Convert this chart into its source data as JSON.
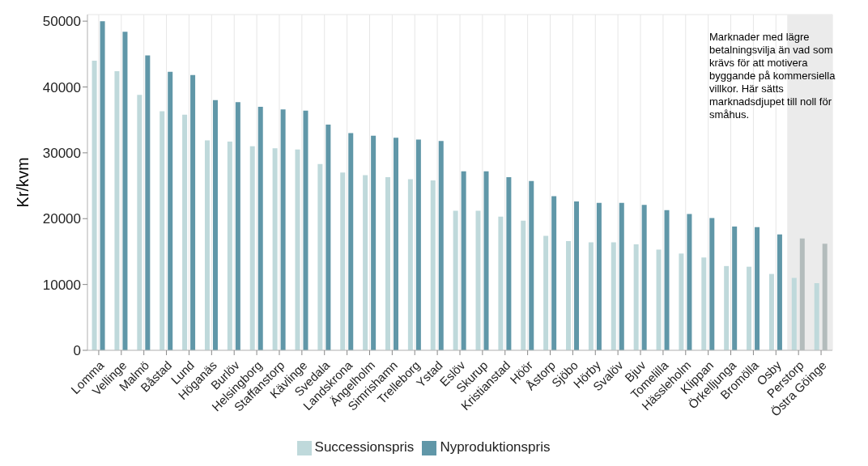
{
  "chart_data": {
    "type": "bar",
    "ylabel": "Kr/kvm",
    "categories": [
      "Lomma",
      "Vellinge",
      "Malmö",
      "Båstad",
      "Lund",
      "Höganäs",
      "Burlöv",
      "Helsingborg",
      "Staffanstorp",
      "Kävlinge",
      "Svedala",
      "Landskrona",
      "Ängelholm",
      "Simrishamn",
      "Trelleborg",
      "Ystad",
      "Eslöv",
      "Skurup",
      "Kristianstad",
      "Höör",
      "Åstorp",
      "Sjöbo",
      "Hörby",
      "Svalöv",
      "Bjuv",
      "Tomelilla",
      "Hässleholm",
      "Klippan",
      "Örkelljunga",
      "Bromölla",
      "Osby",
      "Perstorp",
      "Östra Göinge"
    ],
    "series": [
      {
        "name": "Successionspris",
        "color": "#bfd9db",
        "values": [
          44000,
          42400,
          38800,
          36300,
          35800,
          31900,
          31700,
          31000,
          30700,
          30500,
          28300,
          27000,
          26600,
          26300,
          26000,
          25800,
          21200,
          21200,
          20300,
          19700,
          17400,
          16600,
          16400,
          16400,
          16100,
          15300,
          14700,
          14100,
          12800,
          12700,
          11600,
          11000,
          10200
        ]
      },
      {
        "name": "Nyproduktionspris",
        "color": "#6097a8",
        "colors": [
          "#6097a8",
          "#6097a8",
          "#6097a8",
          "#6097a8",
          "#6097a8",
          "#6097a8",
          "#6097a8",
          "#6097a8",
          "#6097a8",
          "#6097a8",
          "#6097a8",
          "#6097a8",
          "#6097a8",
          "#6097a8",
          "#6097a8",
          "#6097a8",
          "#6097a8",
          "#6097a8",
          "#6097a8",
          "#6097a8",
          "#6097a8",
          "#6097a8",
          "#6097a8",
          "#6097a8",
          "#6097a8",
          "#6097a8",
          "#6097a8",
          "#6097a8",
          "#6097a8",
          "#6097a8",
          "#6097a8",
          "#b3bcbc",
          "#b3bcbc"
        ],
        "values": [
          50000,
          48400,
          44800,
          42300,
          41800,
          38000,
          37700,
          37000,
          36600,
          36400,
          34300,
          33000,
          32600,
          32300,
          32000,
          31800,
          27200,
          27200,
          26300,
          25700,
          23400,
          22600,
          22400,
          22400,
          22100,
          21300,
          20700,
          20100,
          18800,
          18700,
          17600,
          17000,
          16200
        ]
      }
    ],
    "ylim": [
      0,
      51000
    ],
    "yticks": [
      0,
      10000,
      20000,
      30000,
      40000,
      50000
    ],
    "bands": [
      {
        "axis": "x",
        "from": "Perstorp",
        "to": "Östra Göinge",
        "color": "#ebebeb",
        "label": "Marknader med lägre betalningsvilja än vad som krävs för att motivera byggande på kommersiella villkor. Här sätts marknadsdjupet till noll för småhus."
      }
    ],
    "grid": true,
    "legend": "bottom"
  }
}
